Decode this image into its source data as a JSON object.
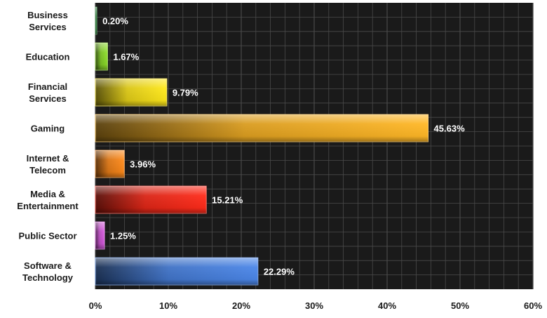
{
  "chart_data": {
    "type": "bar",
    "orientation": "horizontal",
    "categories": [
      [
        "Business",
        "Services"
      ],
      [
        "Education"
      ],
      [
        "Financial",
        "Services"
      ],
      [
        "Gaming"
      ],
      [
        "Internet &",
        "Telecom"
      ],
      [
        "Media &",
        "Entertainment"
      ],
      [
        "Public Sector"
      ],
      [
        "Software &",
        "Technology"
      ]
    ],
    "values": [
      0.2,
      1.67,
      9.79,
      45.63,
      3.96,
      15.21,
      1.25,
      22.29
    ],
    "value_labels": [
      "0.20%",
      "1.67%",
      "9.79%",
      "45.63%",
      "3.96%",
      "15.21%",
      "1.25%",
      "22.29%"
    ],
    "bar_colors": [
      "#1f7a2e",
      "#8ee02a",
      "#ffe81a",
      "#ffb726",
      "#ff8a1a",
      "#ff2b1a",
      "#d85ae0",
      "#4b86e8"
    ],
    "xlim": [
      0,
      60
    ],
    "x_ticks": [
      0,
      10,
      20,
      30,
      40,
      50,
      60
    ],
    "x_tick_labels": [
      "0%",
      "10%",
      "20%",
      "30%",
      "40%",
      "50%",
      "60%"
    ],
    "title": "",
    "xlabel": "",
    "ylabel": "",
    "grid": true,
    "legend": "none",
    "plot_background": "#1a1a1a",
    "grid_color": "#4a4a4a",
    "label_color": "#ffffff",
    "tick_color": "#1a1a1a"
  }
}
